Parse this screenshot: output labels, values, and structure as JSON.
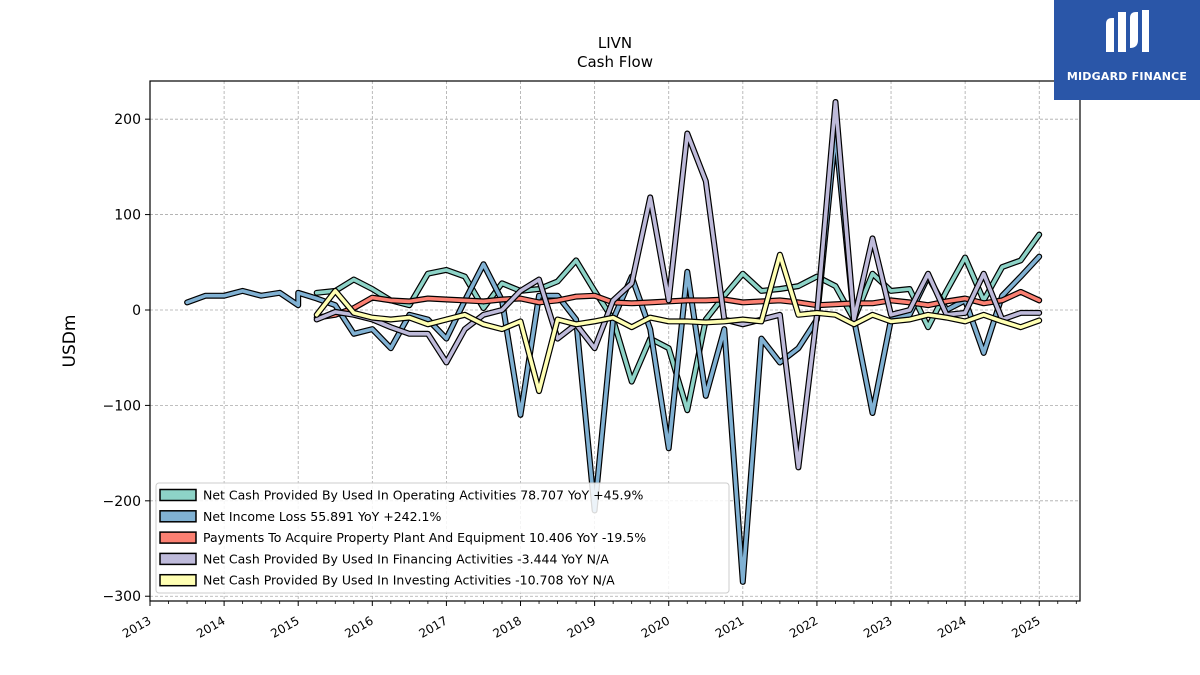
{
  "chart_data": {
    "type": "line",
    "title": "LIVN",
    "subtitle": "Cash Flow",
    "ylabel": "USDm",
    "xlabel": "",
    "ylim": [
      -305,
      240
    ],
    "xlim": [
      2013.0,
      2025.55
    ],
    "yticks": [
      200,
      100,
      0,
      -100,
      -200,
      -300
    ],
    "ytick_labels": [
      "200",
      "100",
      "0",
      "−100",
      "−200",
      "−300"
    ],
    "xticks": [
      2013,
      2014,
      2015,
      2016,
      2017,
      2018,
      2019,
      2020,
      2021,
      2022,
      2023,
      2024,
      2025
    ],
    "xtick_labels": [
      "2013",
      "2014",
      "2015",
      "2016",
      "2017",
      "2018",
      "2019",
      "2020",
      "2021",
      "2022",
      "2023",
      "2024",
      "2025"
    ],
    "grid": true,
    "legend_position": "lower-left",
    "series": [
      {
        "name": "Net Cash Provided By Used In Operating Activities  78.707 YoY +45.9%",
        "color": "#8dd3c7",
        "points": [
          [
            2015.25,
            18
          ],
          [
            2015.5,
            20
          ],
          [
            2015.75,
            32
          ],
          [
            2016.0,
            22
          ],
          [
            2016.25,
            10
          ],
          [
            2016.5,
            5
          ],
          [
            2016.75,
            38
          ],
          [
            2017.0,
            42
          ],
          [
            2017.25,
            35
          ],
          [
            2017.5,
            2
          ],
          [
            2017.75,
            28
          ],
          [
            2018.0,
            20
          ],
          [
            2018.25,
            22
          ],
          [
            2018.5,
            30
          ],
          [
            2018.75,
            52
          ],
          [
            2019.0,
            20
          ],
          [
            2019.25,
            -10
          ],
          [
            2019.5,
            -75
          ],
          [
            2019.75,
            -30
          ],
          [
            2020.0,
            -40
          ],
          [
            2020.25,
            -105
          ],
          [
            2020.5,
            -10
          ],
          [
            2020.75,
            15
          ],
          [
            2021.0,
            38
          ],
          [
            2021.25,
            20
          ],
          [
            2021.5,
            22
          ],
          [
            2021.75,
            25
          ],
          [
            2022.0,
            35
          ],
          [
            2022.25,
            25
          ],
          [
            2022.5,
            -10
          ],
          [
            2022.75,
            38
          ],
          [
            2023.0,
            20
          ],
          [
            2023.25,
            22
          ],
          [
            2023.5,
            -18
          ],
          [
            2023.75,
            20
          ],
          [
            2024.0,
            55
          ],
          [
            2024.25,
            10
          ],
          [
            2024.5,
            45
          ],
          [
            2024.75,
            52
          ],
          [
            2025.0,
            79
          ]
        ]
      },
      {
        "name": "Net Income Loss  55.891 YoY +242.1%",
        "color": "#80b1d3",
        "points": [
          [
            2013.5,
            8
          ],
          [
            2013.75,
            15
          ],
          [
            2014.0,
            15
          ],
          [
            2014.25,
            20
          ],
          [
            2014.5,
            15
          ],
          [
            2014.75,
            18
          ],
          [
            2015.0,
            5
          ],
          [
            2015.0,
            18
          ],
          [
            2015.25,
            12
          ],
          [
            2015.5,
            5
          ],
          [
            2015.75,
            -25
          ],
          [
            2016.0,
            -20
          ],
          [
            2016.25,
            -40
          ],
          [
            2016.5,
            -5
          ],
          [
            2016.75,
            -10
          ],
          [
            2017.0,
            -30
          ],
          [
            2017.25,
            10
          ],
          [
            2017.5,
            48
          ],
          [
            2017.75,
            10
          ],
          [
            2018.0,
            -110
          ],
          [
            2018.25,
            15
          ],
          [
            2018.5,
            15
          ],
          [
            2018.75,
            -10
          ],
          [
            2019.0,
            -210
          ],
          [
            2019.25,
            -10
          ],
          [
            2019.5,
            35
          ],
          [
            2019.75,
            -20
          ],
          [
            2020.0,
            -145
          ],
          [
            2020.25,
            40
          ],
          [
            2020.5,
            -90
          ],
          [
            2020.75,
            -20
          ],
          [
            2021.0,
            -285
          ],
          [
            2021.25,
            -30
          ],
          [
            2021.5,
            -55
          ],
          [
            2021.75,
            -40
          ],
          [
            2022.0,
            -10
          ],
          [
            2022.25,
            185
          ],
          [
            2022.5,
            -10
          ],
          [
            2022.75,
            -108
          ],
          [
            2023.0,
            -10
          ],
          [
            2023.25,
            -5
          ],
          [
            2023.5,
            35
          ],
          [
            2023.75,
            0
          ],
          [
            2024.0,
            10
          ],
          [
            2024.25,
            -45
          ],
          [
            2024.5,
            15
          ],
          [
            2024.75,
            35
          ],
          [
            2025.0,
            56
          ]
        ]
      },
      {
        "name": "Payments To Acquire Property Plant And Equipment  10.406 YoY -19.5%",
        "color": "#fb8072",
        "points": [
          [
            2015.25,
            -8
          ],
          [
            2015.5,
            -5
          ],
          [
            2015.75,
            2
          ],
          [
            2016.0,
            13
          ],
          [
            2016.25,
            10
          ],
          [
            2016.5,
            9
          ],
          [
            2016.75,
            12
          ],
          [
            2017.0,
            11
          ],
          [
            2017.25,
            10
          ],
          [
            2017.5,
            9
          ],
          [
            2017.75,
            11
          ],
          [
            2018.0,
            12
          ],
          [
            2018.25,
            8
          ],
          [
            2018.5,
            10
          ],
          [
            2018.75,
            14
          ],
          [
            2019.0,
            15
          ],
          [
            2019.25,
            8
          ],
          [
            2019.5,
            7
          ],
          [
            2019.75,
            8
          ],
          [
            2020.0,
            9
          ],
          [
            2020.25,
            10
          ],
          [
            2020.5,
            10
          ],
          [
            2020.75,
            11
          ],
          [
            2021.0,
            8
          ],
          [
            2021.25,
            9
          ],
          [
            2021.5,
            10
          ],
          [
            2021.75,
            8
          ],
          [
            2022.0,
            5
          ],
          [
            2022.25,
            6
          ],
          [
            2022.5,
            7
          ],
          [
            2022.75,
            7
          ],
          [
            2023.0,
            10
          ],
          [
            2023.25,
            8
          ],
          [
            2023.5,
            5
          ],
          [
            2023.75,
            9
          ],
          [
            2024.0,
            12
          ],
          [
            2024.25,
            7
          ],
          [
            2024.5,
            10
          ],
          [
            2024.75,
            19
          ],
          [
            2025.0,
            10
          ]
        ]
      },
      {
        "name": "Net Cash Provided By Used In Financing Activities  -3.444 YoY N/A",
        "color": "#bebada",
        "points": [
          [
            2015.25,
            -10
          ],
          [
            2015.5,
            -2
          ],
          [
            2015.75,
            -5
          ],
          [
            2016.0,
            -10
          ],
          [
            2016.25,
            -18
          ],
          [
            2016.5,
            -25
          ],
          [
            2016.75,
            -25
          ],
          [
            2017.0,
            -55
          ],
          [
            2017.25,
            -20
          ],
          [
            2017.5,
            -5
          ],
          [
            2017.75,
            0
          ],
          [
            2018.0,
            20
          ],
          [
            2018.25,
            32
          ],
          [
            2018.5,
            -30
          ],
          [
            2018.75,
            -15
          ],
          [
            2019.0,
            -40
          ],
          [
            2019.25,
            10
          ],
          [
            2019.5,
            28
          ],
          [
            2019.75,
            118
          ],
          [
            2020.0,
            10
          ],
          [
            2020.25,
            185
          ],
          [
            2020.5,
            135
          ],
          [
            2020.75,
            -10
          ],
          [
            2021.0,
            -15
          ],
          [
            2021.25,
            -10
          ],
          [
            2021.5,
            -5
          ],
          [
            2021.75,
            -165
          ],
          [
            2022.0,
            -5
          ],
          [
            2022.25,
            218
          ],
          [
            2022.5,
            -10
          ],
          [
            2022.75,
            75
          ],
          [
            2023.0,
            -5
          ],
          [
            2023.25,
            0
          ],
          [
            2023.5,
            38
          ],
          [
            2023.75,
            -5
          ],
          [
            2024.0,
            -3
          ],
          [
            2024.25,
            38
          ],
          [
            2024.5,
            -10
          ],
          [
            2024.75,
            -3
          ],
          [
            2025.0,
            -3
          ]
        ]
      },
      {
        "name": "Net Cash Provided By Used In Investing Activities  -10.708 YoY N/A",
        "color": "#ffffb3",
        "points": [
          [
            2015.25,
            -5
          ],
          [
            2015.5,
            20
          ],
          [
            2015.75,
            -3
          ],
          [
            2016.0,
            -8
          ],
          [
            2016.25,
            -10
          ],
          [
            2016.5,
            -8
          ],
          [
            2016.75,
            -15
          ],
          [
            2017.0,
            -10
          ],
          [
            2017.25,
            -5
          ],
          [
            2017.5,
            -15
          ],
          [
            2017.75,
            -20
          ],
          [
            2018.0,
            -12
          ],
          [
            2018.25,
            -85
          ],
          [
            2018.5,
            -10
          ],
          [
            2018.75,
            -15
          ],
          [
            2019.0,
            -12
          ],
          [
            2019.25,
            -8
          ],
          [
            2019.5,
            -18
          ],
          [
            2019.75,
            -8
          ],
          [
            2020.0,
            -12
          ],
          [
            2020.25,
            -12
          ],
          [
            2020.5,
            -13
          ],
          [
            2020.75,
            -12
          ],
          [
            2021.0,
            -10
          ],
          [
            2021.25,
            -12
          ],
          [
            2021.5,
            58
          ],
          [
            2021.75,
            -5
          ],
          [
            2022.0,
            -3
          ],
          [
            2022.25,
            -5
          ],
          [
            2022.5,
            -15
          ],
          [
            2022.75,
            -5
          ],
          [
            2023.0,
            -12
          ],
          [
            2023.25,
            -10
          ],
          [
            2023.5,
            -5
          ],
          [
            2023.75,
            -8
          ],
          [
            2024.0,
            -12
          ],
          [
            2024.25,
            -5
          ],
          [
            2024.5,
            -12
          ],
          [
            2024.75,
            -18
          ],
          [
            2025.0,
            -11
          ]
        ]
      }
    ]
  },
  "logo": {
    "text": "MIDGARD FINANCE",
    "color": "#2a56a8"
  }
}
